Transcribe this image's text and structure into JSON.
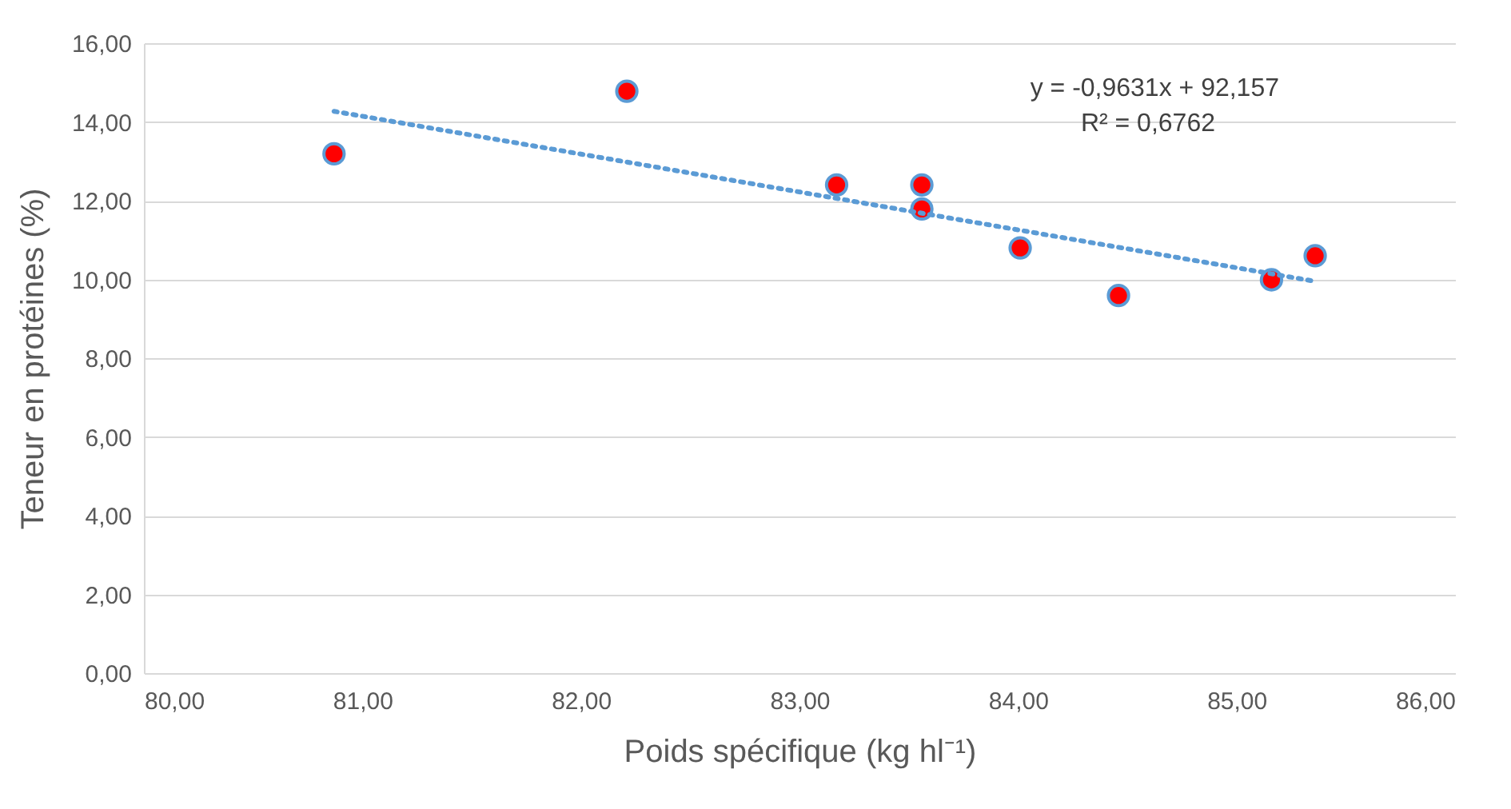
{
  "chart_data": {
    "type": "scatter",
    "xlabel": "Poids spécifique (kg hl⁻¹)",
    "ylabel": "Teneur en protéines (%)",
    "series": [
      {
        "color": "#ff0000",
        "marker": "circle",
        "x": [
          80.87,
          82.21,
          83.17,
          83.56,
          83.56,
          84.01,
          84.46,
          85.16,
          85.36
        ],
        "values": [
          13.19,
          14.78,
          12.4,
          12.4,
          11.79,
          10.8,
          9.59,
          9.99,
          10.6
        ]
      },
      {
        "type": "line",
        "color": "#5b9bd5",
        "line_style": "dotted",
        "x": [
          80.87,
          85.36
        ],
        "values": [
          14.27,
          9.95
        ]
      }
    ],
    "grid": "y",
    "xlim": [
      80,
      86
    ],
    "xticks": [
      {
        "value": 80,
        "label": "80,00"
      },
      {
        "value": 81,
        "label": "81,00"
      },
      {
        "value": 82,
        "label": "82,00"
      },
      {
        "value": 83,
        "label": "83,00"
      },
      {
        "value": 84,
        "label": "84,00"
      },
      {
        "value": 85,
        "label": "85,00"
      },
      {
        "value": 86,
        "label": "86,00"
      }
    ],
    "ylim": [
      0,
      16
    ],
    "yticks": [
      {
        "value": 0,
        "label": "0,00"
      },
      {
        "value": 2,
        "label": "2,00"
      },
      {
        "value": 4,
        "label": "4,00"
      },
      {
        "value": 6,
        "label": "6,00"
      },
      {
        "value": 8,
        "label": "8,00"
      },
      {
        "value": 10,
        "label": "10,00"
      },
      {
        "value": 12,
        "label": "12,00"
      },
      {
        "value": 14,
        "label": "14,00"
      },
      {
        "value": 16,
        "label": "16,00"
      }
    ],
    "annotations": [
      "y = -0,9631x + 92,157",
      "R² = 0,6762"
    ]
  }
}
